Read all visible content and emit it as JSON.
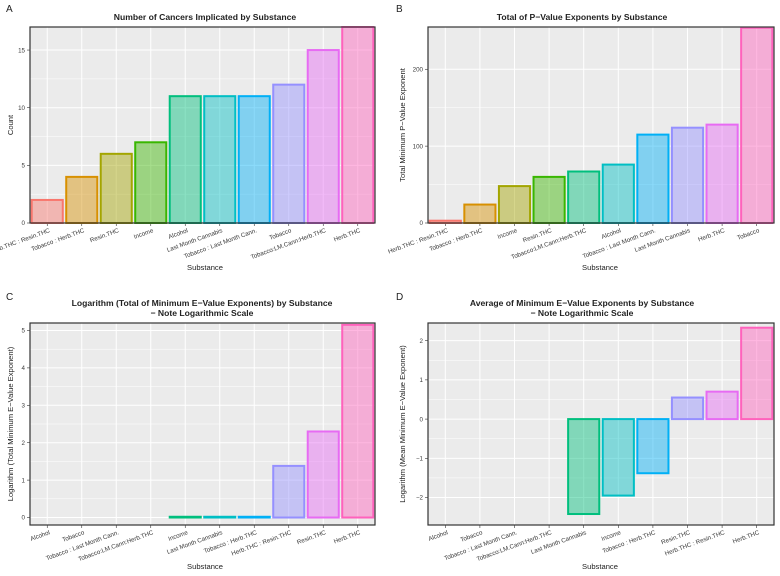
{
  "chart_data": [
    {
      "panel": "A",
      "type": "bar",
      "title": [
        "Number of Cancers Implicated by Substance"
      ],
      "xlabel": "Substance",
      "ylabel": "Count",
      "ylim": [
        0,
        17
      ],
      "yticks": [
        0,
        5,
        10,
        15
      ],
      "log_scale": false,
      "grid": true,
      "bar_colors": [
        "#F8766D",
        "#D89000",
        "#A3A500",
        "#39B600",
        "#00BF7D",
        "#00BFC4",
        "#00B0F6",
        "#9590FF",
        "#E76BF3",
        "#FF62BC"
      ],
      "categories": [
        "Herb.THC : Resin.THC",
        "Tobacco : Herb.THC",
        "Resin.THC",
        "Income",
        "Alcohol",
        "Last Month Cannabis",
        "Tobacco : Last Month Cann.",
        "Tobacco",
        "Tobacco:LM.Cann:Herb.THC",
        "Herb.THC"
      ],
      "values": [
        2,
        4,
        6,
        7,
        11,
        11,
        11,
        12,
        15,
        17
      ]
    },
    {
      "panel": "B",
      "type": "bar",
      "title": [
        "Total of P−Value Exponents by Substance"
      ],
      "xlabel": "Substance",
      "ylabel": "Total Minimum P−Value Exponent",
      "ylim": [
        0,
        255
      ],
      "yticks": [
        0,
        100,
        200
      ],
      "log_scale": false,
      "grid": true,
      "bar_colors": [
        "#F8766D",
        "#D89000",
        "#A3A500",
        "#39B600",
        "#00BF7D",
        "#00BFC4",
        "#00B0F6",
        "#9590FF",
        "#E76BF3",
        "#FF62BC"
      ],
      "categories": [
        "Herb.THC : Resin.THC",
        "Tobacco : Herb.THC",
        "Income",
        "Resin.THC",
        "Tobacco:LM.Cann:Herb.THC",
        "Alcohol",
        "Tobacco : Last Month Cann.",
        "Last Month Cannabis",
        "Herb.THC",
        "Tobacco"
      ],
      "values": [
        3,
        24,
        48,
        60,
        67,
        76,
        115,
        124,
        128,
        254
      ]
    },
    {
      "panel": "C",
      "type": "bar",
      "title": [
        "Logarithm (Total of Minimum E−Value Exponents) by Substance",
        "− Note Logarithmic Scale"
      ],
      "xlabel": "Substance",
      "ylabel": "Logarithm (Total Minimum E−Value Exponent)",
      "ylim": [
        -0.2,
        5.2
      ],
      "yticks": [
        0,
        1,
        2,
        3,
        4,
        5
      ],
      "log_scale": true,
      "grid": true,
      "bar_colors": [
        "#F8766D",
        "#D89000",
        "#A3A500",
        "#39B600",
        "#00BF7D",
        "#00BFC4",
        "#00B0F6",
        "#9590FF",
        "#E76BF3",
        "#FF62BC"
      ],
      "categories": [
        "Alcohol",
        "Tobacco",
        "Tobacco : Last Month Cann.",
        "Tobacco:LM.Cann:Herb.THC",
        "Income",
        "Last Month Cannabis",
        "Tobacco : Herb.THC",
        "Herb.THC : Resin.THC",
        "Resin.THC",
        "Herb.THC"
      ],
      "values": [
        null,
        null,
        null,
        null,
        0.02,
        0.02,
        0.02,
        1.38,
        2.3,
        5.15
      ]
    },
    {
      "panel": "D",
      "type": "bar",
      "title": [
        "Average of Minimum E−Value Exponents by Substance",
        "− Note Logarithmic Scale"
      ],
      "xlabel": "Substance",
      "ylabel": "Logarithm (Mean Minimum E−Value Exponent)",
      "ylim": [
        -2.7,
        2.45
      ],
      "yticks": [
        -2,
        -1,
        0,
        1,
        2
      ],
      "log_scale": true,
      "grid": true,
      "bar_colors": [
        "#F8766D",
        "#D89000",
        "#A3A500",
        "#39B600",
        "#00BF7D",
        "#00BFC4",
        "#00B0F6",
        "#9590FF",
        "#E76BF3",
        "#FF62BC"
      ],
      "categories": [
        "Alcohol",
        "Tobacco",
        "Tobacco : Last Month Cann.",
        "Tobacco:LM.Cann:Herb.THC",
        "Last Month Cannabis",
        "Income",
        "Tobacco : Herb.THC",
        "Resin.THC",
        "Herb.THC : Resin.THC",
        "Herb.THC"
      ],
      "values": [
        null,
        null,
        null,
        null,
        -2.42,
        -1.95,
        -1.38,
        0.55,
        0.7,
        2.33
      ]
    }
  ]
}
